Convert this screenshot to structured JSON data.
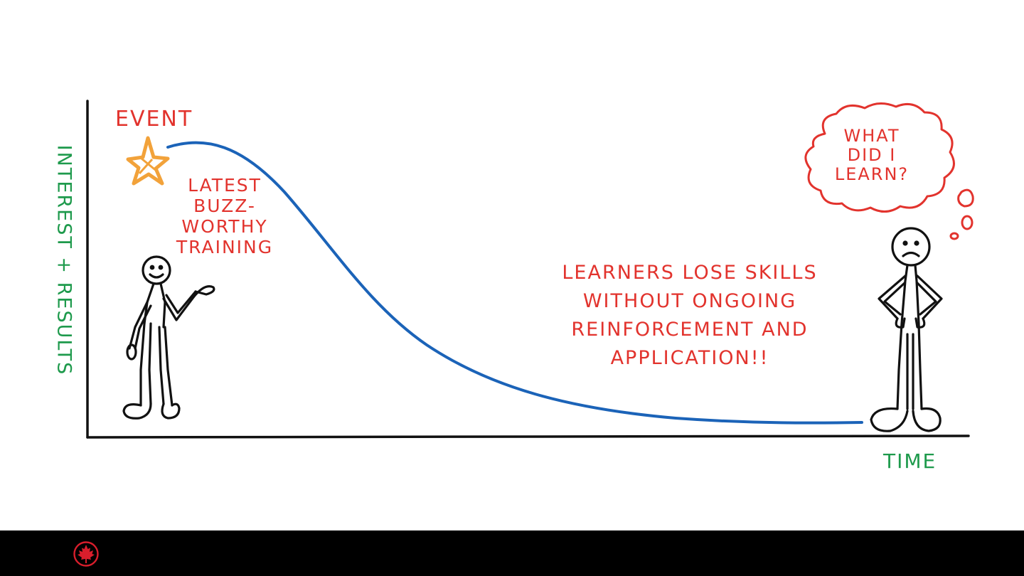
{
  "diagram": {
    "event_label": "EVENT",
    "buzz_lines": [
      "LATEST",
      "BUZZ-",
      "WORTHY",
      "TRAINING"
    ],
    "lose_lines": [
      "LEARNERS LOSE SKILLS",
      "WITHOUT ONGOING",
      "REINFORCEMENT AND",
      "APPLICATION!!"
    ],
    "thought_lines": [
      "WHAT",
      "DID I",
      "LEARN?"
    ],
    "x_axis_label": "TIME",
    "y_axis_label": "INTEREST + RESULTS"
  },
  "colors": {
    "annotation_red": "#e2332d",
    "axis_label_green": "#1e9a4c",
    "curve_blue": "#1b63b8",
    "star_orange": "#f2a23a",
    "footer_black": "#000000",
    "logo_red": "#d81e2c"
  },
  "icons": {
    "star": "star-icon",
    "thought_bubble": "thought-bubble-icon",
    "logo": "maple-leaf-logo"
  }
}
